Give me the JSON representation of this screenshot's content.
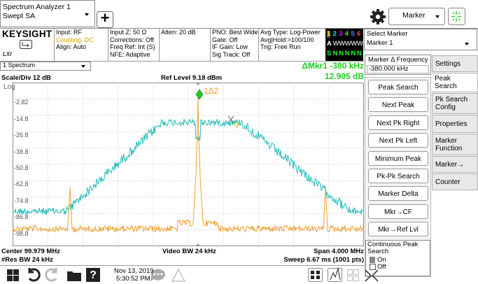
{
  "top_bar": {
    "tab_title": "Spectrum Analyzer 1",
    "tab_subtitle": "Swept SA",
    "add_button": "+",
    "mode_dropdown": "Marker"
  },
  "settings_bar": {
    "logo": "KEYSIGHT",
    "lxi": "LXI",
    "columns": [
      [
        "Input: RF",
        "Coupling: DC",
        "Align: Auto"
      ],
      [
        "Input Z: 50 Ω",
        "Corrections: Off",
        "Freq Ref: Int (S)",
        "NFE: Adaptive"
      ],
      [
        "Atten: 20 dB"
      ],
      [
        "PNO: Best Wide",
        "Gate: Off",
        "IF Gain: Low",
        "Sig Track: Off"
      ],
      [
        "Avg Type: Log-Power",
        "Avg|Hold:>100/100",
        "Trig: Free Run"
      ]
    ],
    "trace_rows": [
      [
        "1",
        "2",
        "3",
        "4",
        "5",
        "6"
      ],
      [
        "A",
        "W",
        "W",
        "W",
        "W",
        "W"
      ],
      [
        "S",
        "N",
        "N",
        "N",
        "N",
        "N"
      ]
    ],
    "select_marker_label": "Select Marker",
    "select_marker_value": "Marker 1"
  },
  "display": {
    "window": "1 Spectrum",
    "scale": "Scale/Div 12 dB",
    "ref_level": "Ref Level 9.18 dBm",
    "marker_readout": "ΔMkr1  -380 kHz",
    "marker_value": "12.905 dB",
    "scale_type": "Log",
    "y_labels": [
      "-2.82",
      "-14.8",
      "-26.8",
      "-38.8",
      "-50.8",
      "-62.8",
      "-74.8",
      "-86.8",
      "-98.8"
    ],
    "marker_label": "1Δ2",
    "center": "Center 99.979 MHz",
    "res_bw": "#Res BW 24 kHz",
    "video_bw": "Video BW 24 kHz",
    "span": "Span 4.000 MHz",
    "sweep": "Sweep 6.67 ms (1001 pts)"
  },
  "marker_panel": {
    "field_label": "Marker Δ Frequency",
    "field_value": "-380.000 kHz",
    "buttons": [
      "Peak Search",
      "Next Peak",
      "Next Pk Right",
      "Next Pk Left",
      "Minimum Peak",
      "Pk-Pk Search",
      "Marker Delta",
      "Mkr→CF",
      "Mkr→Ref Lvl"
    ],
    "continuous": {
      "label": "Continuous Peak Search",
      "on": "On",
      "off": "Off"
    }
  },
  "menu_tabs": [
    "Settings",
    "Peak Search",
    "Pk Search Config",
    "Properties",
    "Marker Function",
    "Marker→",
    "Counter"
  ],
  "taskbar": {
    "date": "Nov 13, 2019",
    "time": "5:30:52 PM"
  }
}
